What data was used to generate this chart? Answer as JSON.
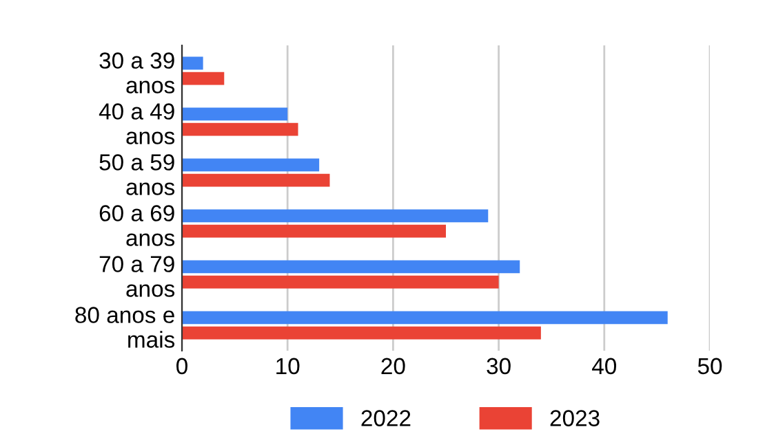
{
  "chart_data": {
    "type": "bar",
    "orientation": "horizontal",
    "categories": [
      "30 a 39\nanos",
      "40 a 49\nanos",
      "50 a 59\nanos",
      "60 a 69\nanos",
      "70 a 79\nanos",
      "80 anos e\nmais"
    ],
    "series": [
      {
        "name": "2022",
        "color": "#4285f4",
        "values": [
          2,
          10,
          13,
          29,
          32,
          46
        ]
      },
      {
        "name": "2023",
        "color": "#ea4335",
        "values": [
          4,
          11,
          14,
          25,
          30,
          34
        ]
      }
    ],
    "xlim": [
      0,
      50
    ],
    "xticks": [
      0,
      10,
      20,
      30,
      40,
      50
    ],
    "grid": "x",
    "legend": "bottom"
  }
}
